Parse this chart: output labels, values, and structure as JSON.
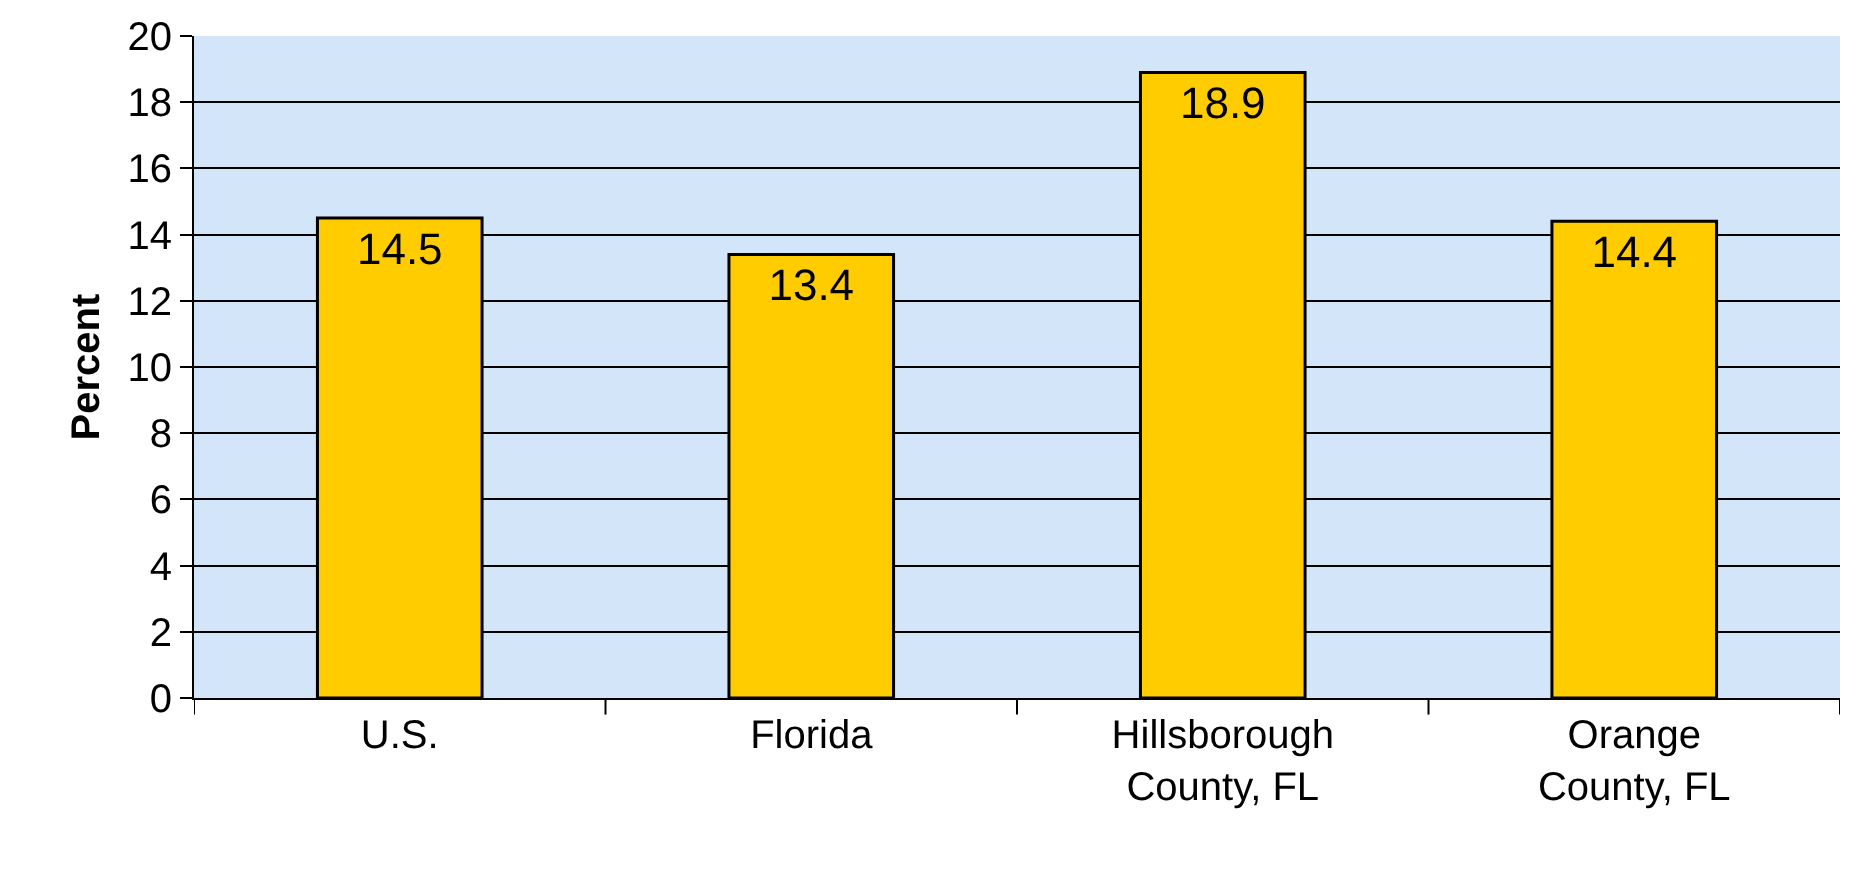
{
  "chart_data": {
    "type": "bar",
    "ylabel": "Percent",
    "categories": [
      "U.S.",
      "Florida",
      "Hillsborough County, FL",
      "Orange County, FL"
    ],
    "values": [
      14.5,
      13.4,
      18.9,
      14.4
    ],
    "color": "#ffcc00",
    "ylim": [
      0,
      20
    ],
    "yticks": [
      0,
      2,
      4,
      6,
      8,
      10,
      12,
      14,
      16,
      18,
      20
    ],
    "grid": "y",
    "data_labels": true
  }
}
